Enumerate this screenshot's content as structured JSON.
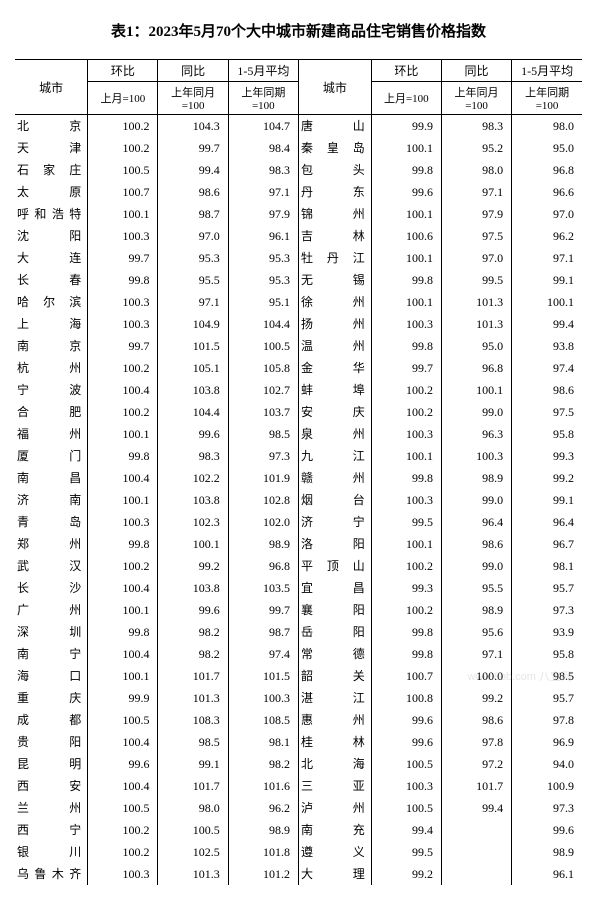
{
  "title": "表1：2023年5月70个大中城市新建商品住宅销售价格指数",
  "headers": {
    "city": "城市",
    "mom": "环比",
    "yoy": "同比",
    "avg": "1-5月平均",
    "mom_sub": "上月=100",
    "yoy_sub": "上年同月=100",
    "avg_sub": "上年同期=100"
  },
  "left": [
    {
      "c": "北　　京",
      "m": "100.2",
      "y": "104.3",
      "a": "104.7"
    },
    {
      "c": "天　　津",
      "m": "100.2",
      "y": "99.7",
      "a": "98.4"
    },
    {
      "c": "石 家 庄",
      "m": "100.5",
      "y": "99.4",
      "a": "98.3"
    },
    {
      "c": "太　　原",
      "m": "100.7",
      "y": "98.6",
      "a": "97.1"
    },
    {
      "c": "呼和浩特",
      "m": "100.1",
      "y": "98.7",
      "a": "97.9"
    },
    {
      "c": "沈　　阳",
      "m": "100.3",
      "y": "97.0",
      "a": "96.1"
    },
    {
      "c": "大　　连",
      "m": "99.7",
      "y": "95.3",
      "a": "95.3"
    },
    {
      "c": "长　　春",
      "m": "99.8",
      "y": "95.5",
      "a": "95.3"
    },
    {
      "c": "哈 尔 滨",
      "m": "100.3",
      "y": "97.1",
      "a": "95.1"
    },
    {
      "c": "上　　海",
      "m": "100.3",
      "y": "104.9",
      "a": "104.4"
    },
    {
      "c": "南　　京",
      "m": "99.7",
      "y": "101.5",
      "a": "100.5"
    },
    {
      "c": "杭　　州",
      "m": "100.2",
      "y": "105.1",
      "a": "105.8"
    },
    {
      "c": "宁　　波",
      "m": "100.4",
      "y": "103.8",
      "a": "102.7"
    },
    {
      "c": "合　　肥",
      "m": "100.2",
      "y": "104.4",
      "a": "103.7"
    },
    {
      "c": "福　　州",
      "m": "100.1",
      "y": "99.6",
      "a": "98.5"
    },
    {
      "c": "厦　　门",
      "m": "99.8",
      "y": "98.3",
      "a": "97.3"
    },
    {
      "c": "南　　昌",
      "m": "100.4",
      "y": "102.2",
      "a": "101.9"
    },
    {
      "c": "济　　南",
      "m": "100.1",
      "y": "103.8",
      "a": "102.8"
    },
    {
      "c": "青　　岛",
      "m": "100.3",
      "y": "102.3",
      "a": "102.0"
    },
    {
      "c": "郑　　州",
      "m": "99.8",
      "y": "100.1",
      "a": "98.9"
    },
    {
      "c": "武　　汉",
      "m": "100.2",
      "y": "99.2",
      "a": "96.8"
    },
    {
      "c": "长　　沙",
      "m": "100.4",
      "y": "103.8",
      "a": "103.5"
    },
    {
      "c": "广　　州",
      "m": "100.1",
      "y": "99.6",
      "a": "99.7"
    },
    {
      "c": "深　　圳",
      "m": "99.8",
      "y": "98.2",
      "a": "98.7"
    },
    {
      "c": "南　　宁",
      "m": "100.4",
      "y": "98.2",
      "a": "97.4"
    },
    {
      "c": "海　　口",
      "m": "100.1",
      "y": "101.7",
      "a": "101.5"
    },
    {
      "c": "重　　庆",
      "m": "99.9",
      "y": "101.3",
      "a": "100.3"
    },
    {
      "c": "成　　都",
      "m": "100.5",
      "y": "108.3",
      "a": "108.5"
    },
    {
      "c": "贵　　阳",
      "m": "100.4",
      "y": "98.5",
      "a": "98.1"
    },
    {
      "c": "昆　　明",
      "m": "99.6",
      "y": "99.1",
      "a": "98.2"
    },
    {
      "c": "西　　安",
      "m": "100.4",
      "y": "101.7",
      "a": "101.6"
    },
    {
      "c": "兰　　州",
      "m": "100.5",
      "y": "98.0",
      "a": "96.2"
    },
    {
      "c": "西　　宁",
      "m": "100.2",
      "y": "100.5",
      "a": "98.9"
    },
    {
      "c": "银　　川",
      "m": "100.2",
      "y": "102.5",
      "a": "101.8"
    },
    {
      "c": "乌鲁木齐",
      "m": "100.3",
      "y": "101.3",
      "a": "101.2"
    }
  ],
  "right": [
    {
      "c": "唐　　山",
      "m": "99.9",
      "y": "98.3",
      "a": "98.0"
    },
    {
      "c": "秦 皇 岛",
      "m": "100.1",
      "y": "95.2",
      "a": "95.0"
    },
    {
      "c": "包　　头",
      "m": "99.8",
      "y": "98.0",
      "a": "96.8"
    },
    {
      "c": "丹　　东",
      "m": "99.6",
      "y": "97.1",
      "a": "96.6"
    },
    {
      "c": "锦　　州",
      "m": "100.1",
      "y": "97.9",
      "a": "97.0"
    },
    {
      "c": "吉　　林",
      "m": "100.6",
      "y": "97.5",
      "a": "96.2"
    },
    {
      "c": "牡 丹 江",
      "m": "100.1",
      "y": "97.0",
      "a": "97.1"
    },
    {
      "c": "无　　锡",
      "m": "99.8",
      "y": "99.5",
      "a": "99.1"
    },
    {
      "c": "徐　　州",
      "m": "100.1",
      "y": "101.3",
      "a": "100.1"
    },
    {
      "c": "扬　　州",
      "m": "100.3",
      "y": "101.3",
      "a": "99.4"
    },
    {
      "c": "温　　州",
      "m": "99.8",
      "y": "95.0",
      "a": "93.8"
    },
    {
      "c": "金　　华",
      "m": "99.7",
      "y": "96.8",
      "a": "97.4"
    },
    {
      "c": "蚌　　埠",
      "m": "100.2",
      "y": "100.1",
      "a": "98.6"
    },
    {
      "c": "安　　庆",
      "m": "100.2",
      "y": "99.0",
      "a": "97.5"
    },
    {
      "c": "泉　　州",
      "m": "100.3",
      "y": "96.3",
      "a": "95.8"
    },
    {
      "c": "九　　江",
      "m": "100.1",
      "y": "100.3",
      "a": "99.3"
    },
    {
      "c": "赣　　州",
      "m": "99.8",
      "y": "98.9",
      "a": "99.2"
    },
    {
      "c": "烟　　台",
      "m": "100.3",
      "y": "99.0",
      "a": "99.1"
    },
    {
      "c": "济　　宁",
      "m": "99.5",
      "y": "96.4",
      "a": "96.4"
    },
    {
      "c": "洛　　阳",
      "m": "100.1",
      "y": "98.6",
      "a": "96.7"
    },
    {
      "c": "平 顶 山",
      "m": "100.2",
      "y": "99.0",
      "a": "98.1"
    },
    {
      "c": "宜　　昌",
      "m": "99.3",
      "y": "95.5",
      "a": "95.7"
    },
    {
      "c": "襄　　阳",
      "m": "100.2",
      "y": "98.9",
      "a": "97.3"
    },
    {
      "c": "岳　　阳",
      "m": "99.8",
      "y": "95.6",
      "a": "93.9"
    },
    {
      "c": "常　　德",
      "m": "99.8",
      "y": "97.1",
      "a": "95.8"
    },
    {
      "c": "韶　　关",
      "m": "100.7",
      "y": "100.0",
      "a": "98.5"
    },
    {
      "c": "湛　　江",
      "m": "100.8",
      "y": "99.2",
      "a": "95.7"
    },
    {
      "c": "惠　　州",
      "m": "99.6",
      "y": "98.6",
      "a": "97.8"
    },
    {
      "c": "桂　　林",
      "m": "99.6",
      "y": "97.8",
      "a": "96.9"
    },
    {
      "c": "北　　海",
      "m": "100.5",
      "y": "97.2",
      "a": "94.0"
    },
    {
      "c": "三　　亚",
      "m": "100.3",
      "y": "101.7",
      "a": "100.9"
    },
    {
      "c": "泸　　州",
      "m": "100.5",
      "y": "99.4",
      "a": "97.3"
    },
    {
      "c": "南　　充",
      "m": "99.4",
      "y": "",
      "a": "99.6"
    },
    {
      "c": "遵　　义",
      "m": "99.5",
      "y": "",
      "a": "98.9"
    },
    {
      "c": "大　　理",
      "m": "99.2",
      "y": "",
      "a": "96.1"
    }
  ],
  "watermark": "www.8bb.com 八宝网"
}
